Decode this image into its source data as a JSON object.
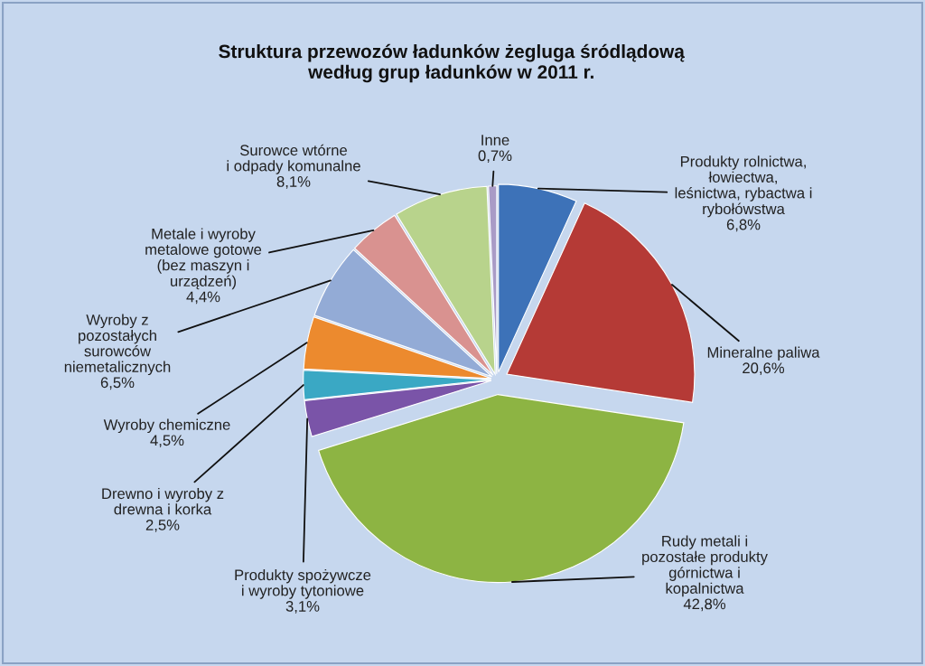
{
  "chart_data": {
    "type": "pie",
    "title": "Struktura przewozów ładunków żegluga śródlądową\nwedług grup ładunków w 2011 r.",
    "categories": [
      "Produkty rolnictwa,\nłowiectwa,\nleśnictwa, rybactwa i\nrybołówstwa",
      "Mineralne paliwa",
      "Rudy metali i\npozostałe produkty\ngórnictwa i\nkopalnictwa",
      "Produkty spożywcze\ni wyroby tytoniowe",
      "Drewno i wyroby z\ndrewna i korka",
      "Wyroby chemiczne",
      "Wyroby z\npozostałych\nsurowców\nniemetalicznych",
      "Metale i wyroby\nmetalowe gotowe\n(bez maszyn i\nurządzeń)",
      "Surowce wtórne\ni odpady komunalne",
      "Inne"
    ],
    "values": [
      6.8,
      20.6,
      42.8,
      3.1,
      2.5,
      4.5,
      6.5,
      4.4,
      8.1,
      0.7
    ],
    "colors": [
      "#3d72b8",
      "#b53a36",
      "#8db443",
      "#7a54a8",
      "#3aa8c4",
      "#ec8a2e",
      "#93abd6",
      "#d99290",
      "#b8d38c",
      "#a99bc6"
    ],
    "value_labels": [
      "6,8%",
      "20,6%",
      "42,8%",
      "3,1%",
      "2,5%",
      "4,5%",
      "6,5%",
      "4,4%",
      "8,1%",
      "0,7%"
    ]
  }
}
